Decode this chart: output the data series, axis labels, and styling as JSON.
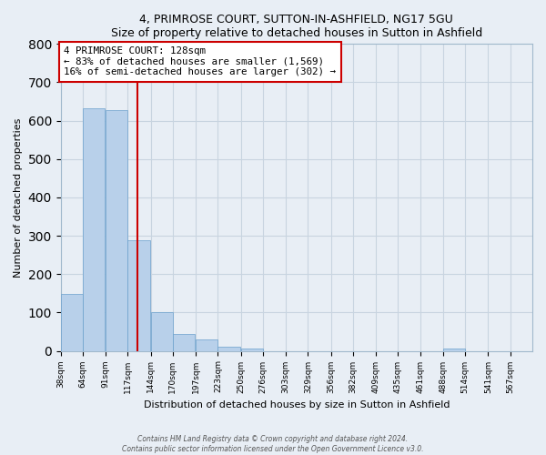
{
  "title": "4, PRIMROSE COURT, SUTTON-IN-ASHFIELD, NG17 5GU",
  "subtitle": "Size of property relative to detached houses in Sutton in Ashfield",
  "xlabel": "Distribution of detached houses by size in Sutton in Ashfield",
  "ylabel": "Number of detached properties",
  "bar_values": [
    148,
    632,
    628,
    288,
    100,
    45,
    30,
    12,
    7,
    0,
    0,
    0,
    0,
    0,
    0,
    0,
    0,
    5,
    0,
    0
  ],
  "bin_labels": [
    "38sqm",
    "64sqm",
    "91sqm",
    "117sqm",
    "144sqm",
    "170sqm",
    "197sqm",
    "223sqm",
    "250sqm",
    "276sqm",
    "303sqm",
    "329sqm",
    "356sqm",
    "382sqm",
    "409sqm",
    "435sqm",
    "461sqm",
    "488sqm",
    "514sqm",
    "541sqm",
    "567sqm"
  ],
  "bin_edges": [
    38,
    64,
    91,
    117,
    144,
    170,
    197,
    223,
    250,
    276,
    303,
    329,
    356,
    382,
    409,
    435,
    461,
    488,
    514,
    541,
    567
  ],
  "bar_color": "#b8d0ea",
  "bar_edge_color": "#6aa0cc",
  "property_line_x": 128,
  "property_line_color": "#cc0000",
  "annotation_title": "4 PRIMROSE COURT: 128sqm",
  "annotation_line1": "← 83% of detached houses are smaller (1,569)",
  "annotation_line2": "16% of semi-detached houses are larger (302) →",
  "annotation_box_color": "#cc0000",
  "ylim": [
    0,
    800
  ],
  "xlim_left": 38,
  "background_color": "#e8eef5",
  "grid_color": "#c8d4e0",
  "footer_line1": "Contains HM Land Registry data © Crown copyright and database right 2024.",
  "footer_line2": "Contains public sector information licensed under the Open Government Licence v3.0."
}
